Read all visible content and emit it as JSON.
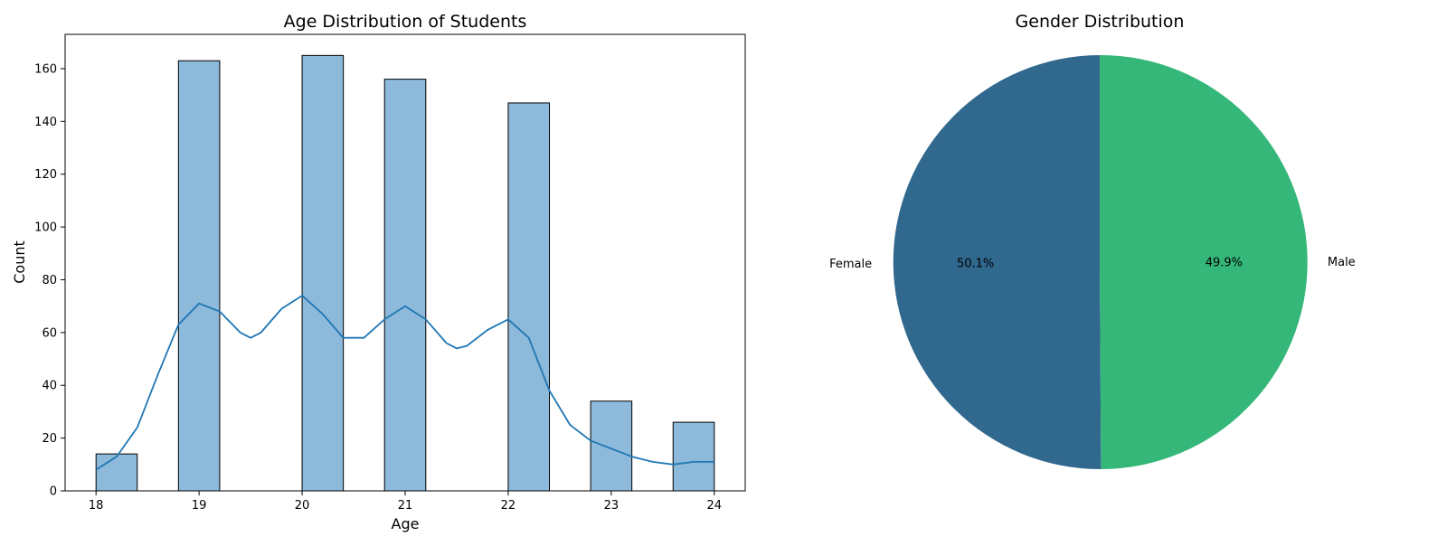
{
  "chart_data": [
    {
      "type": "bar",
      "title": "Age Distribution of Students",
      "xlabel": "Age",
      "ylabel": "Count",
      "xlim": [
        17.7,
        24.3
      ],
      "ylim": [
        0,
        173
      ],
      "bin_width": 0.4,
      "bars": [
        {
          "x_start": 18.0,
          "value": 14
        },
        {
          "x_start": 18.8,
          "value": 163
        },
        {
          "x_start": 20.0,
          "value": 165
        },
        {
          "x_start": 20.8,
          "value": 156
        },
        {
          "x_start": 22.0,
          "value": 147
        },
        {
          "x_start": 22.8,
          "value": 34
        },
        {
          "x_start": 23.6,
          "value": 26
        }
      ],
      "x_ticks": [
        18,
        19,
        20,
        21,
        22,
        23,
        24
      ],
      "y_ticks": [
        0,
        20,
        40,
        60,
        80,
        100,
        120,
        140,
        160
      ],
      "series": [
        {
          "type": "kde",
          "x": [
            18.0,
            18.2,
            18.4,
            18.6,
            18.8,
            19.0,
            19.2,
            19.4,
            19.5,
            19.6,
            19.8,
            20.0,
            20.2,
            20.4,
            20.6,
            20.8,
            21.0,
            21.2,
            21.4,
            21.5,
            21.6,
            21.8,
            22.0,
            22.2,
            22.4,
            22.6,
            22.8,
            23.0,
            23.2,
            23.4,
            23.6,
            23.8,
            24.0
          ],
          "y": [
            8,
            13,
            24,
            44,
            63,
            71,
            68,
            60,
            58,
            60,
            69,
            74,
            67,
            58,
            58,
            65,
            70,
            65,
            56,
            54,
            55,
            61,
            65,
            58,
            38,
            25,
            19,
            16,
            13,
            11,
            10,
            11,
            11
          ]
        }
      ],
      "grid": false,
      "colors": {
        "bar_fill": "#8db9da",
        "bar_edge": "#000000",
        "kde_line": "#1f77b4"
      }
    },
    {
      "type": "pie",
      "title": "Gender Distribution",
      "slices": [
        {
          "label": "Female",
          "value": 50.1,
          "pct_label": "50.1%",
          "color": "#31688e"
        },
        {
          "label": "Male",
          "value": 49.9,
          "pct_label": "49.9%",
          "color": "#35b779"
        }
      ],
      "start_angle": 90
    }
  ]
}
